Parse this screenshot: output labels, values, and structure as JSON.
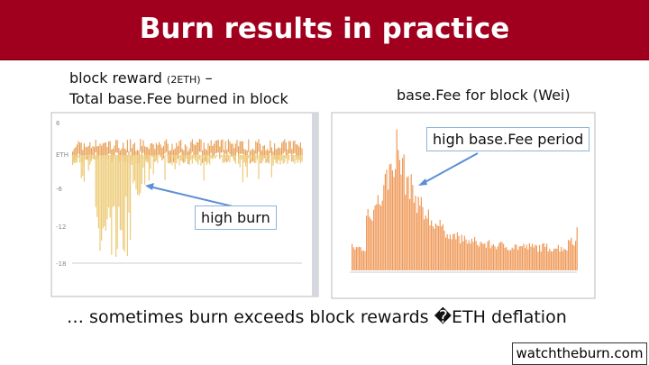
{
  "header": {
    "title": "Burn results in practice"
  },
  "left_panel": {
    "caption_main": "block reward",
    "caption_unit": "(2ETH)",
    "caption_dash": "–",
    "caption_line2": "Total base.Fee burned in block",
    "y_labels": [
      "6",
      "ETH",
      "-6",
      "-12",
      "-18"
    ],
    "callout": "high burn"
  },
  "right_panel": {
    "caption": "base.Fee for block (Wei)",
    "callout": "high base.Fee period"
  },
  "footer": {
    "statement": "… sometimes burn exceeds block rewards �ETH deflation",
    "source": "watchtheburn.com"
  }
}
